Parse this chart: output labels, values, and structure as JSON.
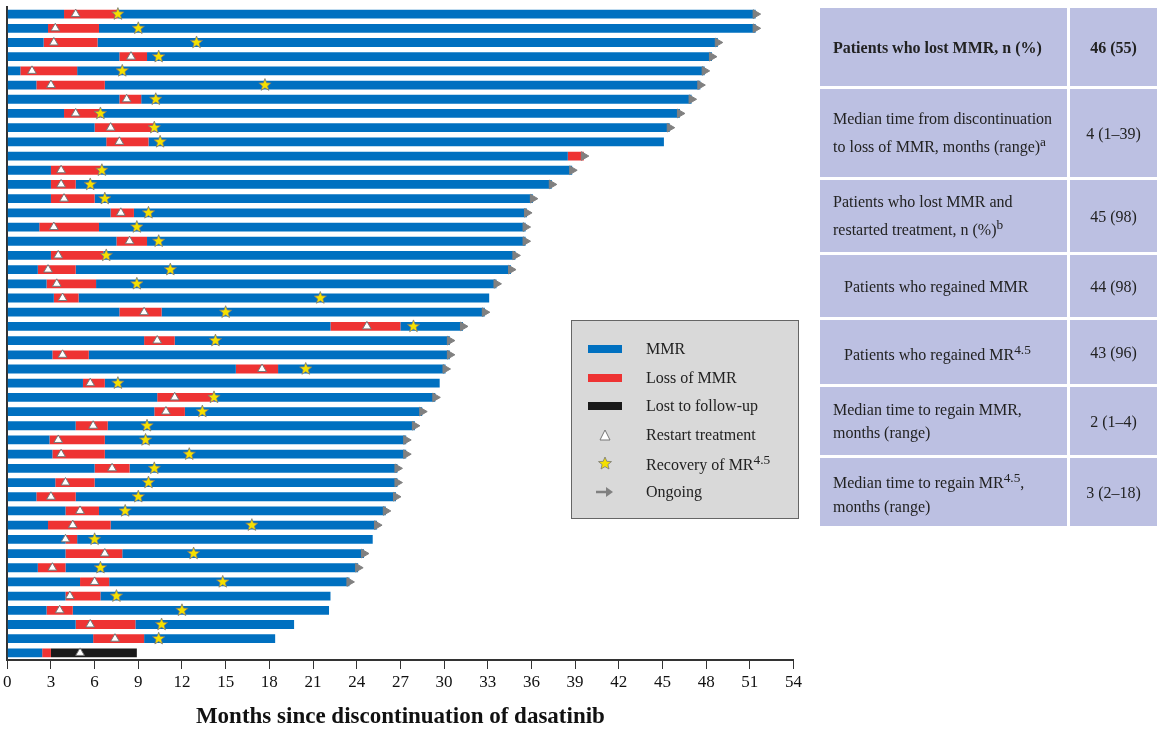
{
  "chart_data": [
    {
      "type": "bar",
      "orientation": "horizontal",
      "stacked": true,
      "xlabel": "Months since discontinuation of dasatinib",
      "xlim": [
        0,
        54
      ],
      "xticks": [
        0,
        3,
        6,
        9,
        12,
        15,
        18,
        21,
        24,
        27,
        30,
        33,
        36,
        39,
        42,
        45,
        48,
        51,
        54
      ],
      "tick_labels": "x",
      "legend": "right",
      "categories": [
        null,
        null,
        null,
        null,
        null,
        null,
        null,
        null,
        null,
        null,
        null,
        null,
        null,
        null,
        null,
        null,
        null,
        null,
        null,
        null,
        null,
        null,
        null,
        null,
        null,
        null,
        null,
        null,
        null,
        null,
        null,
        null,
        null,
        null,
        null,
        null,
        null,
        null,
        null,
        null,
        null,
        null,
        null,
        null,
        null,
        null
      ],
      "series": [
        {
          "name": "MMR",
          "color": "#0070c0",
          "values": [
            3.9,
            2.8,
            2.5,
            7.7,
            0.9,
            2.0,
            7.7,
            3.9,
            6.0,
            6.8,
            38.5,
            3.0,
            3.0,
            3.0,
            7.1,
            2.2,
            7.5,
            3.0,
            2.1,
            2.7,
            3.2,
            7.7,
            22.2,
            9.4,
            3.1,
            15.7,
            5.2,
            10.3,
            10.1,
            4.7,
            2.9,
            3.1,
            6.0,
            3.3,
            2.0,
            4.0,
            2.8,
            4.0,
            4.0,
            2.1,
            5.0,
            4.0,
            2.7,
            4.7,
            5.9,
            2.4
          ]
        },
        {
          "name": "Loss of MMR",
          "color": "#ee3333",
          "values": [
            3.7,
            3.5,
            3.7,
            1.9,
            3.9,
            4.7,
            1.5,
            2.5,
            4.1,
            2.9,
            1.1,
            3.4,
            1.7,
            3.0,
            1.6,
            4.1,
            2.1,
            3.6,
            2.6,
            3.4,
            1.7,
            2.9,
            4.8,
            2.1,
            2.5,
            2.9,
            1.5,
            3.9,
            2.1,
            2.2,
            3.8,
            3.6,
            2.4,
            2.7,
            2.7,
            2.3,
            4.3,
            0.8,
            3.9,
            1.9,
            2.0,
            2.4,
            1.8,
            4.1,
            3.5,
            0.6
          ]
        },
        {
          "color": "#0070c0",
          "values": [
            43.8,
            45.1,
            42.6,
            38.8,
            43.1,
            40.9,
            37.8,
            39.8,
            35.4,
            35.4,
            null,
            32.4,
            32.7,
            30.1,
            27.0,
            29.3,
            26.0,
            28.3,
            29.9,
            27.5,
            28.2,
            22.2,
            4.3,
            18.9,
            24.8,
            11.5,
            23.0,
            15.2,
            16.3,
            21.1,
            20.7,
            20.7,
            18.4,
            20.8,
            22.0,
            19.7,
            18.3,
            20.3,
            16.6,
            20.1,
            16.5,
            15.8,
            17.6,
            10.9,
            9.0,
            null
          ]
        },
        {
          "name": "Lost to follow-up",
          "color": "#1a1a1a",
          "values": [
            null,
            null,
            null,
            null,
            null,
            null,
            null,
            null,
            null,
            null,
            null,
            null,
            null,
            null,
            null,
            null,
            null,
            null,
            null,
            null,
            null,
            null,
            null,
            null,
            null,
            null,
            null,
            null,
            null,
            null,
            null,
            null,
            null,
            null,
            null,
            null,
            null,
            null,
            null,
            null,
            null,
            null,
            null,
            null,
            null,
            5.9
          ]
        },
        {
          "type": "scatter",
          "name": "Restart treatment",
          "marker": "triangle",
          "color": "#ffffff",
          "values": [
            4.7,
            3.3,
            3.2,
            8.5,
            1.7,
            3.0,
            8.2,
            4.7,
            7.1,
            7.7,
            null,
            3.7,
            3.7,
            3.9,
            7.8,
            3.2,
            8.4,
            3.5,
            2.8,
            3.4,
            3.8,
            9.4,
            24.7,
            10.3,
            3.8,
            17.5,
            5.7,
            11.5,
            10.9,
            5.9,
            3.5,
            3.7,
            7.2,
            4.0,
            3.0,
            5.0,
            4.5,
            4.0,
            6.7,
            3.1,
            6.0,
            4.3,
            3.6,
            5.7,
            7.4,
            5.0
          ]
        },
        {
          "type": "scatter",
          "name": "Recovery of MR$^{4.5}$",
          "marker": "star",
          "color": "#f5e000",
          "values": [
            7.6,
            9.0,
            13.0,
            10.4,
            7.9,
            17.7,
            10.2,
            6.4,
            10.1,
            10.5,
            null,
            6.5,
            5.7,
            6.7,
            9.7,
            8.9,
            10.4,
            6.8,
            11.2,
            8.9,
            21.5,
            15.0,
            27.9,
            14.3,
            null,
            20.5,
            7.6,
            14.2,
            13.4,
            9.6,
            9.5,
            12.5,
            10.1,
            9.7,
            9.0,
            8.1,
            16.8,
            6.0,
            12.8,
            6.4,
            14.8,
            7.5,
            12.0,
            10.6,
            10.4,
            null
          ]
        },
        {
          "type": "scatter",
          "name": "Ongoing",
          "marker": "triangle",
          "color": "#808080",
          "values": [
            51.4,
            51.4,
            48.8,
            48.4,
            47.9,
            47.6,
            47.0,
            46.2,
            45.5,
            null,
            39.6,
            38.8,
            37.4,
            36.1,
            35.7,
            35.6,
            35.6,
            34.9,
            34.6,
            33.6,
            null,
            32.8,
            31.3,
            30.4,
            30.4,
            30.1,
            null,
            29.4,
            28.5,
            28.0,
            27.4,
            27.4,
            26.8,
            26.8,
            26.7,
            26.0,
            25.4,
            null,
            24.5,
            24.1,
            23.5,
            null,
            null,
            null,
            null,
            null
          ]
        }
      ]
    },
    {
      "type": "other",
      "annotations": [
        "Patients who lost MMR, n (%)",
        "46 (55)",
        "Median time from discontinuation to loss of MMR, months (range)$^{a}$",
        "4 (1–39)",
        "Patients who lost MMR and restarted treatment, n (%)$^{b}$",
        "45 (98)",
        "Patients who regained MMR",
        "44 (98)",
        "Patients who regained MR$^{4.5}$",
        "43 (96)",
        "Median time to regain MMR, months (range)",
        "2 (1–4)",
        "Median time to regain MR$^{4.5}$, months (range)",
        "3 (2–18)"
      ]
    }
  ]
}
